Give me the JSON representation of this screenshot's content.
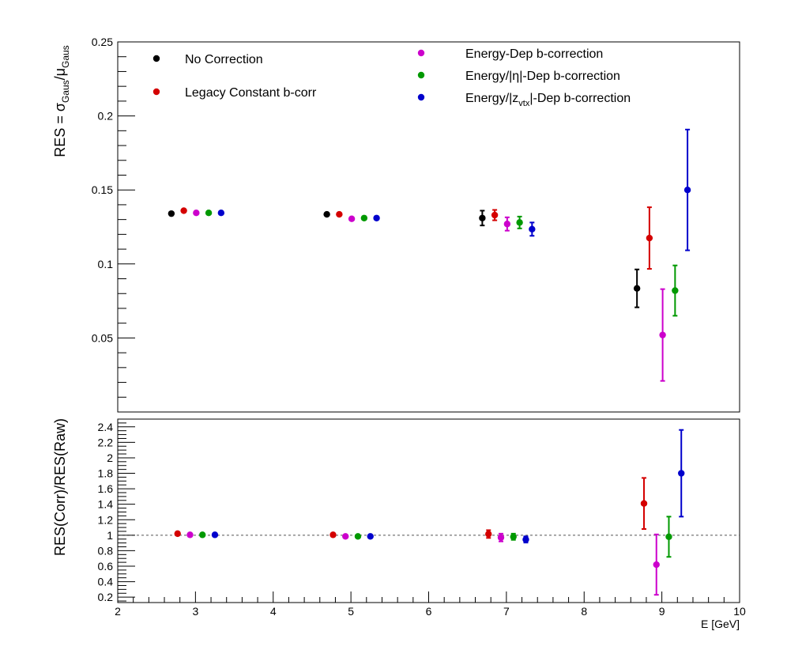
{
  "colors": {
    "black": "#000000",
    "red": "#d40000",
    "magenta": "#cc00cc",
    "green": "#009900",
    "blue": "#0000cc",
    "refline": "#555555"
  },
  "chart_data": [
    {
      "type": "scatter",
      "panel": "top",
      "ylabel_parts": {
        "lead": "RES = σ",
        "sub1": "Gaus",
        "mid": "/μ",
        "sub2": "Gaus"
      },
      "xlim": [
        2,
        10
      ],
      "ylim": [
        0,
        0.25
      ],
      "yticks": [
        "0.05",
        "0.1",
        "0.15",
        "0.2",
        "0.25"
      ],
      "ytick_values": [
        0.05,
        0.1,
        0.15,
        0.2,
        0.25
      ],
      "legend": [
        {
          "series": 0,
          "label": "No Correction"
        },
        {
          "series": 1,
          "label": "Legacy Constant b-corr"
        },
        {
          "series": 2,
          "label": "Energy-Dep b-correction"
        },
        {
          "series": 3,
          "label_parts": {
            "lead": "Energy/|η|-Dep b-correction",
            "sub": "",
            "tail": ""
          }
        },
        {
          "series": 4,
          "label_parts": {
            "lead": "Energy/|z",
            "sub": "vtx",
            "tail": "|-Dep b-correction"
          }
        }
      ],
      "series": [
        {
          "name": "No Correction",
          "color": "black",
          "points": [
            {
              "x": 2.69,
              "y": 0.134,
              "err": 0.0
            },
            {
              "x": 4.69,
              "y": 0.1335,
              "err": 0.0
            },
            {
              "x": 6.69,
              "y": 0.131,
              "err": 0.005
            },
            {
              "x": 8.68,
              "y": 0.0835,
              "err": 0.0128
            }
          ]
        },
        {
          "name": "Legacy Constant b-corr",
          "color": "red",
          "points": [
            {
              "x": 2.85,
              "y": 0.136,
              "err": 0.0
            },
            {
              "x": 4.85,
              "y": 0.1335,
              "err": 0.0
            },
            {
              "x": 6.85,
              "y": 0.133,
              "err": 0.0035
            },
            {
              "x": 8.84,
              "y": 0.1175,
              "err": 0.0208
            }
          ]
        },
        {
          "name": "Energy-Dep b-correction",
          "color": "magenta",
          "points": [
            {
              "x": 3.01,
              "y": 0.1345,
              "err": 0.0
            },
            {
              "x": 5.01,
              "y": 0.1305,
              "err": 0.0
            },
            {
              "x": 7.01,
              "y": 0.127,
              "err": 0.0045
            },
            {
              "x": 9.01,
              "y": 0.052,
              "err": 0.031
            }
          ]
        },
        {
          "name": "Energy/|η|-Dep b-correction",
          "color": "green",
          "points": [
            {
              "x": 3.17,
              "y": 0.1345,
              "err": 0.0
            },
            {
              "x": 5.17,
              "y": 0.131,
              "err": 0.0
            },
            {
              "x": 7.17,
              "y": 0.128,
              "err": 0.004
            },
            {
              "x": 9.17,
              "y": 0.082,
              "err": 0.017
            }
          ]
        },
        {
          "name": "Energy/|z_vtx|-Dep b-correction",
          "color": "blue",
          "points": [
            {
              "x": 3.33,
              "y": 0.1345,
              "err": 0.0
            },
            {
              "x": 5.33,
              "y": 0.131,
              "err": 0.0
            },
            {
              "x": 7.33,
              "y": 0.1235,
              "err": 0.0045
            },
            {
              "x": 9.33,
              "y": 0.15,
              "err": 0.0408
            }
          ]
        }
      ]
    },
    {
      "type": "scatter",
      "panel": "bottom",
      "ylabel": "RES(Corr)/RES(Raw)",
      "xlabel": "E  [GeV]",
      "xlim": [
        2,
        10
      ],
      "ylim": [
        0.13,
        2.5
      ],
      "xticks": [
        "2",
        "3",
        "4",
        "5",
        "6",
        "7",
        "8",
        "9",
        "10"
      ],
      "xtick_values": [
        2,
        3,
        4,
        5,
        6,
        7,
        8,
        9,
        10
      ],
      "yticks": [
        "0.2",
        "0.4",
        "0.6",
        "0.8",
        "1",
        "1.2",
        "1.4",
        "1.6",
        "1.8",
        "2",
        "2.2",
        "2.4"
      ],
      "ytick_values": [
        0.2,
        0.4,
        0.6,
        0.8,
        1.0,
        1.2,
        1.4,
        1.6,
        1.8,
        2.0,
        2.2,
        2.4
      ],
      "reference_line": 1.0,
      "series": [
        {
          "name": "Legacy Constant b-corr",
          "color": "red",
          "points": [
            {
              "x": 2.77,
              "y": 1.02,
              "err": 0.0
            },
            {
              "x": 4.77,
              "y": 1.005,
              "err": 0.0
            },
            {
              "x": 6.77,
              "y": 1.015,
              "err": 0.05
            },
            {
              "x": 8.77,
              "y": 1.41,
              "err": 0.33
            }
          ]
        },
        {
          "name": "Energy-Dep b-correction",
          "color": "magenta",
          "points": [
            {
              "x": 2.93,
              "y": 1.005,
              "err": 0.0
            },
            {
              "x": 4.93,
              "y": 0.985,
              "err": 0.0
            },
            {
              "x": 6.93,
              "y": 0.97,
              "err": 0.05
            },
            {
              "x": 8.93,
              "y": 0.62,
              "err": 0.39
            }
          ]
        },
        {
          "name": "Energy/|η|-Dep b-correction",
          "color": "green",
          "points": [
            {
              "x": 3.09,
              "y": 1.005,
              "err": 0.0
            },
            {
              "x": 5.09,
              "y": 0.985,
              "err": 0.0
            },
            {
              "x": 7.09,
              "y": 0.98,
              "err": 0.04
            },
            {
              "x": 9.09,
              "y": 0.98,
              "err": 0.26
            }
          ]
        },
        {
          "name": "Energy/|z_vtx|-Dep b-correction",
          "color": "blue",
          "points": [
            {
              "x": 3.25,
              "y": 1.005,
              "err": 0.0
            },
            {
              "x": 5.25,
              "y": 0.985,
              "err": 0.0
            },
            {
              "x": 7.25,
              "y": 0.945,
              "err": 0.04
            },
            {
              "x": 9.25,
              "y": 1.8,
              "err": 0.56
            }
          ]
        }
      ]
    }
  ]
}
